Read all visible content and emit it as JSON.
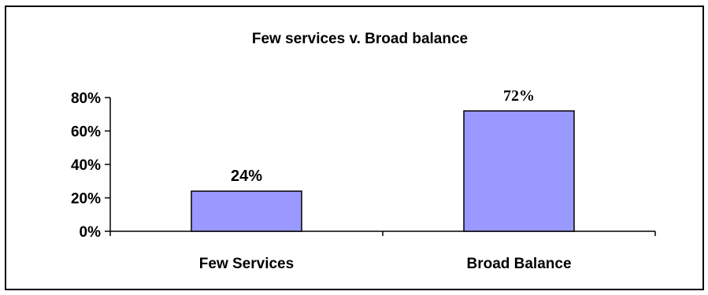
{
  "chart_data": {
    "type": "bar",
    "title": "Few services v. Broad balance",
    "categories": [
      "Few Services",
      "Broad Balance"
    ],
    "values": [
      24,
      72
    ],
    "data_labels": [
      "24%",
      "72%"
    ],
    "y_ticks": [
      0,
      20,
      40,
      60,
      80
    ],
    "y_tick_labels": [
      "0%",
      "20%",
      "40%",
      "60%",
      "80%"
    ],
    "ylim": [
      0,
      80
    ],
    "xlabel": "",
    "ylabel": "",
    "grid": false,
    "legend": "none",
    "bar_color": "#9999ff",
    "bar_edge_color": "#000000"
  }
}
